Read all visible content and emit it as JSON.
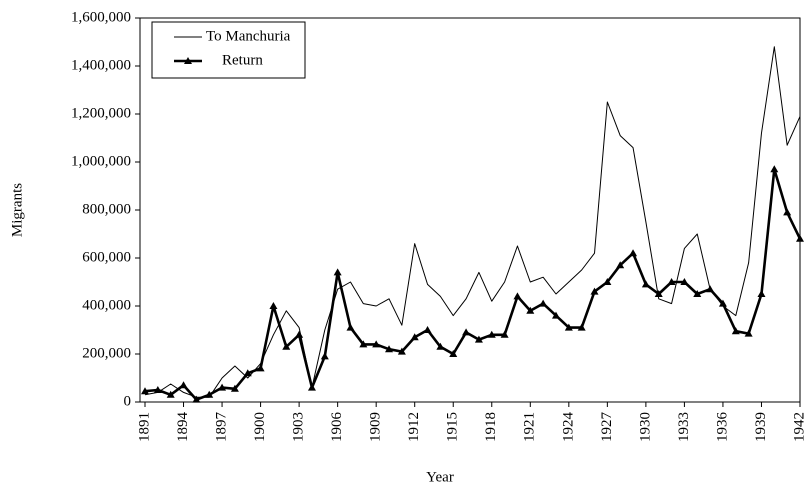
{
  "chart_data": {
    "type": "line",
    "x_label": "Year",
    "y_label": "Migrants",
    "x": [
      1891,
      1892,
      1893,
      1894,
      1895,
      1896,
      1897,
      1898,
      1899,
      1900,
      1901,
      1902,
      1903,
      1904,
      1905,
      1906,
      1907,
      1908,
      1909,
      1910,
      1911,
      1912,
      1913,
      1914,
      1915,
      1916,
      1917,
      1918,
      1919,
      1920,
      1921,
      1922,
      1923,
      1924,
      1925,
      1926,
      1927,
      1928,
      1929,
      1930,
      1931,
      1932,
      1933,
      1934,
      1935,
      1936,
      1937,
      1938,
      1939,
      1940,
      1941,
      1942
    ],
    "series": [
      {
        "name": "To Manchuria",
        "color": "#000000",
        "width": 1,
        "marker": false,
        "values": [
          30000,
          40000,
          75000,
          40000,
          20000,
          20000,
          100000,
          150000,
          100000,
          160000,
          280000,
          380000,
          310000,
          60000,
          300000,
          470000,
          500000,
          410000,
          400000,
          430000,
          320000,
          660000,
          490000,
          440000,
          360000,
          430000,
          540000,
          420000,
          500000,
          650000,
          500000,
          520000,
          450000,
          500000,
          550000,
          620000,
          1250000,
          1110000,
          1060000,
          750000,
          430000,
          410000,
          640000,
          700000,
          470000,
          400000,
          360000,
          580000,
          1120000,
          1480000,
          1070000,
          1190000
        ]
      },
      {
        "name": "Return",
        "color": "#000000",
        "width": 2.6,
        "marker": true,
        "values": [
          45000,
          50000,
          30000,
          70000,
          10000,
          30000,
          60000,
          55000,
          120000,
          140000,
          400000,
          230000,
          280000,
          60000,
          190000,
          540000,
          310000,
          240000,
          240000,
          220000,
          210000,
          270000,
          300000,
          230000,
          200000,
          290000,
          260000,
          280000,
          280000,
          440000,
          380000,
          410000,
          360000,
          310000,
          310000,
          460000,
          500000,
          570000,
          620000,
          490000,
          450000,
          500000,
          500000,
          450000,
          470000,
          410000,
          295000,
          285000,
          450000,
          970000,
          790000,
          680000
        ]
      }
    ],
    "xlim": [
      1891,
      1942
    ],
    "xticks": [
      1891,
      1894,
      1897,
      1900,
      1903,
      1906,
      1909,
      1912,
      1915,
      1918,
      1921,
      1924,
      1927,
      1930,
      1933,
      1936,
      1939,
      1942
    ],
    "ylim": [
      0,
      1600000
    ],
    "yticks": [
      0,
      {
        "value": 200000,
        "label": "200,000"
      },
      {
        "value": 400000,
        "label": "400,000"
      },
      {
        "value": 600000,
        "label": "600,000"
      },
      {
        "value": 800000,
        "label": "800,000"
      },
      {
        "value": 1000000,
        "label": "1,000,000"
      },
      {
        "value": 1200000,
        "label": "1,200,000"
      },
      {
        "value": 1400000,
        "label": "1,400,000"
      },
      {
        "value": 1600000,
        "label": "1,600,000"
      }
    ],
    "legend": "upper left",
    "grid": false
  }
}
